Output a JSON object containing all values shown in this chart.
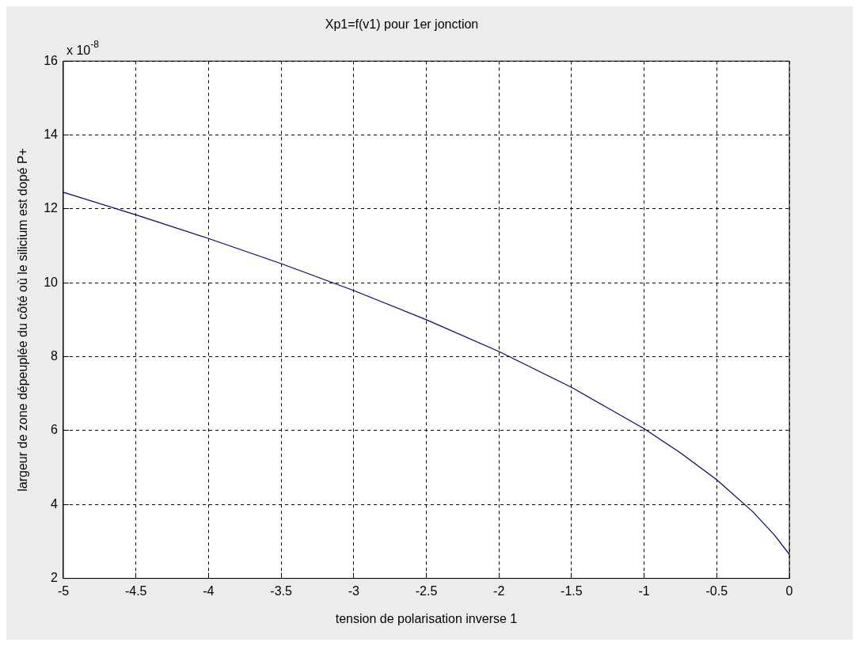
{
  "chart_data": {
    "type": "line",
    "title": "Xp1=f(v1) pour 1er jonction",
    "xlabel": "tension de polarisation inverse 1",
    "ylabel": "largeur de zone dépeuplée du côté où le silicium est dopé P+",
    "annotations": [
      "x 10$^{-8}$"
    ],
    "x": [
      -5,
      -4.5,
      -4,
      -3.5,
      -3,
      -2.5,
      -2,
      -1.5,
      -1,
      -0.75,
      -0.5,
      -0.25,
      -0.1,
      0
    ],
    "series": [
      {
        "color": "#000080",
        "values": [
          12.45,
          11.84,
          11.2,
          10.52,
          9.79,
          9.0,
          8.14,
          7.17,
          6.05,
          5.4,
          4.67,
          3.8,
          3.16,
          2.65
        ]
      }
    ],
    "xlim": [
      -5,
      0
    ],
    "xticks": [
      -5,
      -4.5,
      -4,
      -3.5,
      -3,
      -2.5,
      -2,
      -1.5,
      -1,
      -0.5,
      0
    ],
    "ylim": [
      2,
      16
    ],
    "yticks": [
      2,
      4,
      6,
      8,
      10,
      12,
      14,
      16
    ],
    "grid": true,
    "legend": false,
    "marker": "none",
    "line_style": "solid"
  }
}
